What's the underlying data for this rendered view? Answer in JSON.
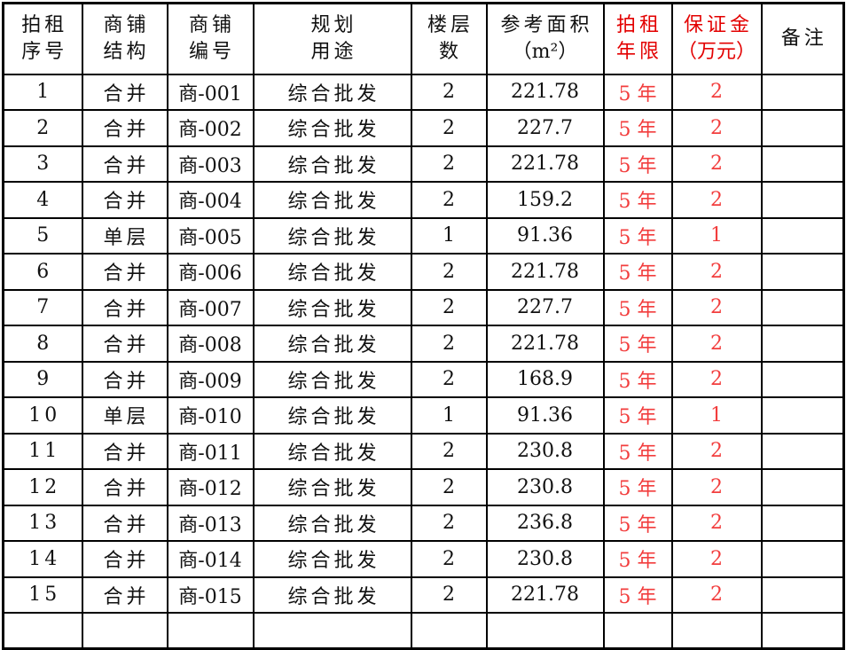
{
  "colors": {
    "border": "#000000",
    "text": "#111111",
    "background": "#ffffff",
    "red_header": "#e30000",
    "red_value": "#f23d3d"
  },
  "table": {
    "columns": [
      {
        "key": "seq",
        "line1": "拍租",
        "line2": "序号",
        "red": false,
        "cjk": true
      },
      {
        "key": "structure",
        "line1": "商铺",
        "line2": "结构",
        "red": false,
        "cjk": true
      },
      {
        "key": "shop_no",
        "line1": "商铺",
        "line2": "编号",
        "red": false,
        "cjk": false
      },
      {
        "key": "usage",
        "line1": "规划",
        "line2": "用途",
        "red": false,
        "cjk": true
      },
      {
        "key": "floors",
        "line1": "楼层",
        "line2": "数",
        "red": false,
        "cjk": false
      },
      {
        "key": "area",
        "line1": "参考面积",
        "line2": "（m²）",
        "red": false,
        "cjk": false
      },
      {
        "key": "term",
        "line1": "拍租",
        "line2": "年限",
        "red": true,
        "cjk": false
      },
      {
        "key": "deposit",
        "line1": "保证金",
        "line2": "（万元）",
        "red": true,
        "cjk": false
      },
      {
        "key": "remark",
        "line1": "备注",
        "line2": "",
        "red": false,
        "cjk": true
      }
    ],
    "rows": [
      {
        "seq": "1",
        "structure": "合并",
        "shop_no": "商-001",
        "usage": "综合批发",
        "floors": "2",
        "area": "221.78",
        "term": "5 年",
        "deposit": "2",
        "remark": ""
      },
      {
        "seq": "2",
        "structure": "合并",
        "shop_no": "商-002",
        "usage": "综合批发",
        "floors": "2",
        "area": "227.7",
        "term": "5 年",
        "deposit": "2",
        "remark": ""
      },
      {
        "seq": "3",
        "structure": "合并",
        "shop_no": "商-003",
        "usage": "综合批发",
        "floors": "2",
        "area": "221.78",
        "term": "5 年",
        "deposit": "2",
        "remark": ""
      },
      {
        "seq": "4",
        "structure": "合并",
        "shop_no": "商-004",
        "usage": "综合批发",
        "floors": "2",
        "area": "159.2",
        "term": "5 年",
        "deposit": "2",
        "remark": ""
      },
      {
        "seq": "5",
        "structure": "单层",
        "shop_no": "商-005",
        "usage": "综合批发",
        "floors": "1",
        "area": "91.36",
        "term": "5 年",
        "deposit": "1",
        "remark": ""
      },
      {
        "seq": "6",
        "structure": "合并",
        "shop_no": "商-006",
        "usage": "综合批发",
        "floors": "2",
        "area": "221.78",
        "term": "5 年",
        "deposit": "2",
        "remark": ""
      },
      {
        "seq": "7",
        "structure": "合并",
        "shop_no": "商-007",
        "usage": "综合批发",
        "floors": "2",
        "area": "227.7",
        "term": "5 年",
        "deposit": "2",
        "remark": ""
      },
      {
        "seq": "8",
        "structure": "合并",
        "shop_no": "商-008",
        "usage": "综合批发",
        "floors": "2",
        "area": "221.78",
        "term": "5 年",
        "deposit": "2",
        "remark": ""
      },
      {
        "seq": "9",
        "structure": "合并",
        "shop_no": "商-009",
        "usage": "综合批发",
        "floors": "2",
        "area": "168.9",
        "term": "5 年",
        "deposit": "2",
        "remark": ""
      },
      {
        "seq": "10",
        "structure": "单层",
        "shop_no": "商-010",
        "usage": "综合批发",
        "floors": "1",
        "area": "91.36",
        "term": "5 年",
        "deposit": "1",
        "remark": ""
      },
      {
        "seq": "11",
        "structure": "合并",
        "shop_no": "商-011",
        "usage": "综合批发",
        "floors": "2",
        "area": "230.8",
        "term": "5 年",
        "deposit": "2",
        "remark": ""
      },
      {
        "seq": "12",
        "structure": "合并",
        "shop_no": "商-012",
        "usage": "综合批发",
        "floors": "2",
        "area": "230.8",
        "term": "5 年",
        "deposit": "2",
        "remark": ""
      },
      {
        "seq": "13",
        "structure": "合并",
        "shop_no": "商-013",
        "usage": "综合批发",
        "floors": "2",
        "area": "236.8",
        "term": "5 年",
        "deposit": "2",
        "remark": ""
      },
      {
        "seq": "14",
        "structure": "合并",
        "shop_no": "商-014",
        "usage": "综合批发",
        "floors": "2",
        "area": "230.8",
        "term": "5 年",
        "deposit": "2",
        "remark": ""
      },
      {
        "seq": "15",
        "structure": "合并",
        "shop_no": "商-015",
        "usage": "综合批发",
        "floors": "2",
        "area": "221.78",
        "term": "5 年",
        "deposit": "2",
        "remark": ""
      },
      {
        "seq": "",
        "structure": "",
        "shop_no": "",
        "usage": "",
        "floors": "",
        "area": "",
        "term": "",
        "deposit": "",
        "remark": ""
      }
    ]
  }
}
